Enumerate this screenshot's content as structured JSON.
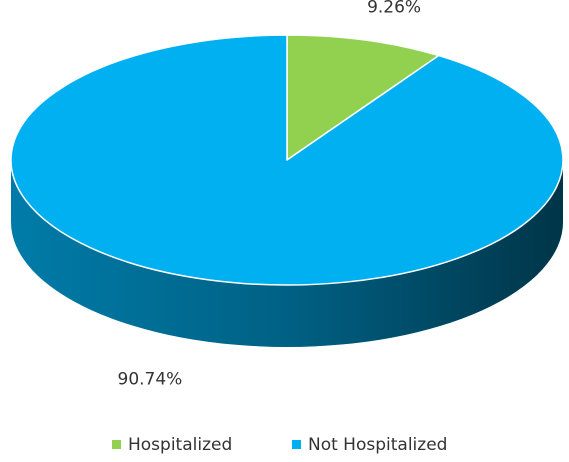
{
  "chart_data": {
    "type": "pie",
    "categories": [
      "Hospitalized",
      "Not Hospitalized"
    ],
    "values": [
      9.26,
      90.74
    ],
    "value_labels": [
      "9.26%",
      "90.74%"
    ],
    "colors": [
      "#92d050",
      "#00b0f0"
    ],
    "legend": "bottom"
  }
}
